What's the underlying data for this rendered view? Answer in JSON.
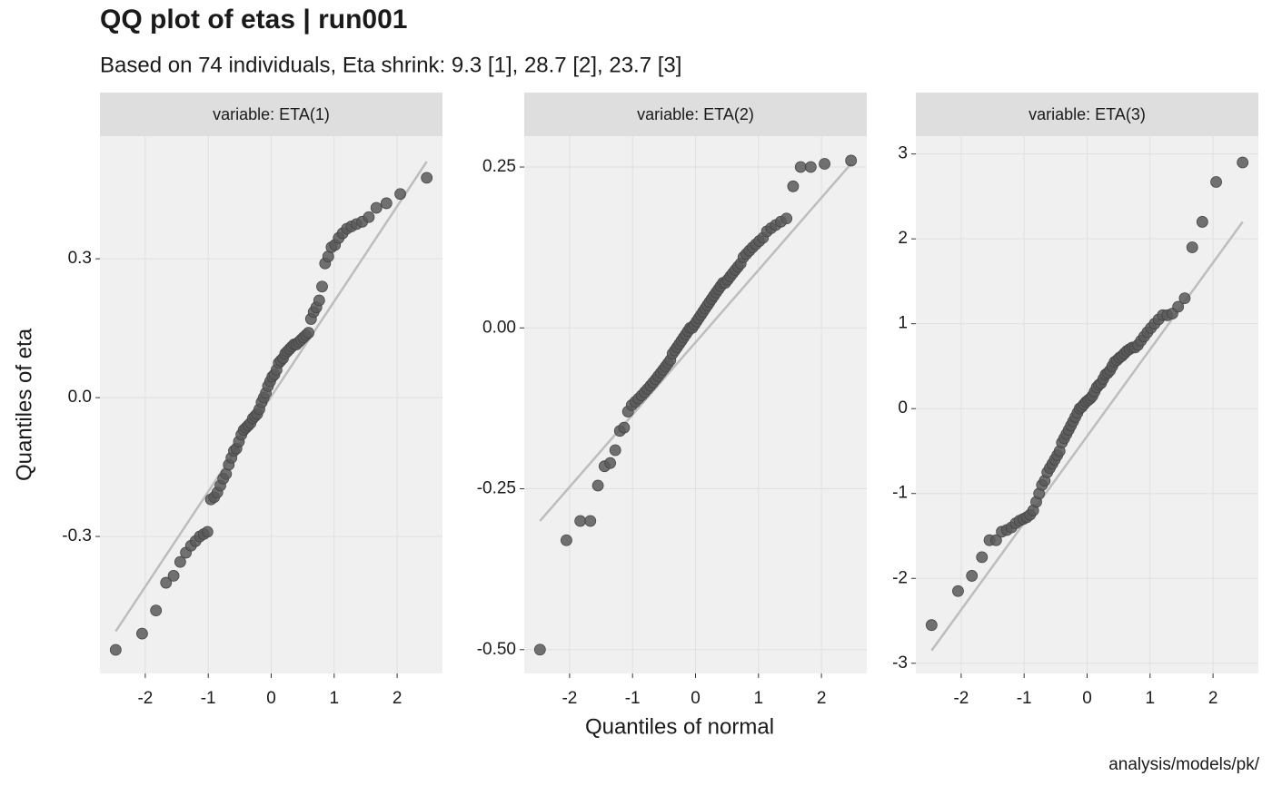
{
  "chart_data": {
    "type": "scatter",
    "title": "QQ plot of etas | run001",
    "subtitle": "Based on 74 individuals, Eta shrink: 9.3 [1], 28.7 [2], 23.7 [3]",
    "x_label": "Quantiles of normal",
    "y_label": "Quantiles of eta",
    "caption": "analysis/models/pk/",
    "point_color": "#595959",
    "line_color": "#bdbdbd",
    "grid": true,
    "xlim": [
      -2.72,
      2.72
    ],
    "xticks": [
      -2,
      -1,
      0,
      1,
      2
    ],
    "x": [
      -2.47,
      -2.05,
      -1.83,
      -1.67,
      -1.55,
      -1.445,
      -1.355,
      -1.274,
      -1.201,
      -1.134,
      -1.072,
      -1.013,
      -0.958,
      -0.906,
      -0.856,
      -0.808,
      -0.762,
      -0.717,
      -0.674,
      -0.632,
      -0.592,
      -0.552,
      -0.513,
      -0.474,
      -0.437,
      -0.4,
      -0.364,
      -0.328,
      -0.292,
      -0.257,
      -0.222,
      -0.188,
      -0.153,
      -0.119,
      -0.085,
      -0.051,
      -0.017,
      0.017,
      0.051,
      0.085,
      0.119,
      0.153,
      0.188,
      0.222,
      0.257,
      0.292,
      0.328,
      0.364,
      0.4,
      0.437,
      0.474,
      0.513,
      0.552,
      0.592,
      0.632,
      0.674,
      0.717,
      0.762,
      0.808,
      0.856,
      0.906,
      0.958,
      1.013,
      1.072,
      1.134,
      1.201,
      1.274,
      1.355,
      1.445,
      1.55,
      1.67,
      1.83,
      2.05,
      2.47
    ],
    "line_x": [
      -2.47,
      2.47
    ],
    "facets": [
      {
        "label": "variable: ETA(1)",
        "ylim": [
          -0.596,
          0.565
        ],
        "yticks": [
          -0.3,
          {
            "value": 0,
            "label": "0.0"
          },
          0.3
        ],
        "line_y": [
          -0.505,
          0.51
        ],
        "values": [
          -0.545,
          -0.51,
          -0.46,
          -0.4,
          -0.385,
          -0.355,
          -0.335,
          -0.32,
          -0.31,
          -0.3,
          -0.295,
          -0.29,
          -0.22,
          -0.215,
          -0.205,
          -0.19,
          -0.175,
          -0.165,
          -0.145,
          -0.13,
          -0.115,
          -0.11,
          -0.095,
          -0.08,
          -0.07,
          -0.065,
          -0.06,
          -0.055,
          -0.045,
          -0.04,
          -0.035,
          -0.025,
          -0.01,
          0.0,
          0.01,
          0.025,
          0.035,
          0.045,
          0.05,
          0.06,
          0.075,
          0.08,
          0.085,
          0.095,
          0.1,
          0.105,
          0.11,
          0.115,
          0.115,
          0.12,
          0.125,
          0.13,
          0.135,
          0.14,
          0.17,
          0.185,
          0.195,
          0.21,
          0.24,
          0.29,
          0.305,
          0.325,
          0.33,
          0.345,
          0.355,
          0.365,
          0.37,
          0.375,
          0.38,
          0.39,
          0.41,
          0.42,
          0.44,
          0.475
        ]
      },
      {
        "label": "variable: ETA(2)",
        "ylim": [
          -0.537,
          0.298
        ],
        "yticks": [
          {
            "value": -0.5,
            "label": "-0.50"
          },
          -0.25,
          {
            "value": 0,
            "label": "0.00"
          },
          0.25
        ],
        "line_y": [
          -0.3,
          0.255
        ],
        "values": [
          -0.5,
          -0.33,
          -0.3,
          -0.3,
          -0.245,
          -0.215,
          -0.21,
          -0.19,
          -0.16,
          -0.155,
          -0.13,
          -0.12,
          -0.115,
          -0.11,
          -0.105,
          -0.1,
          -0.095,
          -0.09,
          -0.085,
          -0.08,
          -0.075,
          -0.07,
          -0.065,
          -0.06,
          -0.055,
          -0.05,
          -0.04,
          -0.035,
          -0.03,
          -0.025,
          -0.02,
          -0.015,
          -0.01,
          -0.005,
          0.0,
          0.0,
          0.005,
          0.01,
          0.015,
          0.02,
          0.025,
          0.03,
          0.035,
          0.04,
          0.045,
          0.05,
          0.055,
          0.06,
          0.065,
          0.07,
          0.07,
          0.075,
          0.08,
          0.085,
          0.09,
          0.095,
          0.1,
          0.11,
          0.115,
          0.12,
          0.125,
          0.13,
          0.135,
          0.14,
          0.15,
          0.155,
          0.16,
          0.165,
          0.17,
          0.22,
          0.25,
          0.25,
          0.255,
          0.26
        ]
      },
      {
        "label": "variable: ETA(3)",
        "ylim": [
          -3.12,
          3.21
        ],
        "yticks": [
          -3,
          -2,
          -1,
          0,
          1,
          2,
          3
        ],
        "line_y": [
          -2.85,
          2.2
        ],
        "values": [
          -2.55,
          -2.15,
          -1.97,
          -1.75,
          -1.55,
          -1.55,
          -1.45,
          -1.43,
          -1.4,
          -1.35,
          -1.32,
          -1.3,
          -1.28,
          -1.25,
          -1.2,
          -1.1,
          -1.0,
          -0.9,
          -0.85,
          -0.75,
          -0.7,
          -0.65,
          -0.6,
          -0.55,
          -0.5,
          -0.4,
          -0.35,
          -0.3,
          -0.25,
          -0.2,
          -0.15,
          -0.1,
          -0.05,
          0.0,
          0.02,
          0.05,
          0.08,
          0.1,
          0.12,
          0.15,
          0.2,
          0.25,
          0.28,
          0.3,
          0.35,
          0.4,
          0.42,
          0.45,
          0.5,
          0.55,
          0.57,
          0.6,
          0.62,
          0.65,
          0.68,
          0.7,
          0.72,
          0.72,
          0.75,
          0.8,
          0.85,
          0.9,
          0.95,
          1.0,
          1.05,
          1.1,
          1.1,
          1.12,
          1.2,
          1.3,
          1.9,
          2.2,
          2.67,
          2.9
        ]
      }
    ]
  }
}
